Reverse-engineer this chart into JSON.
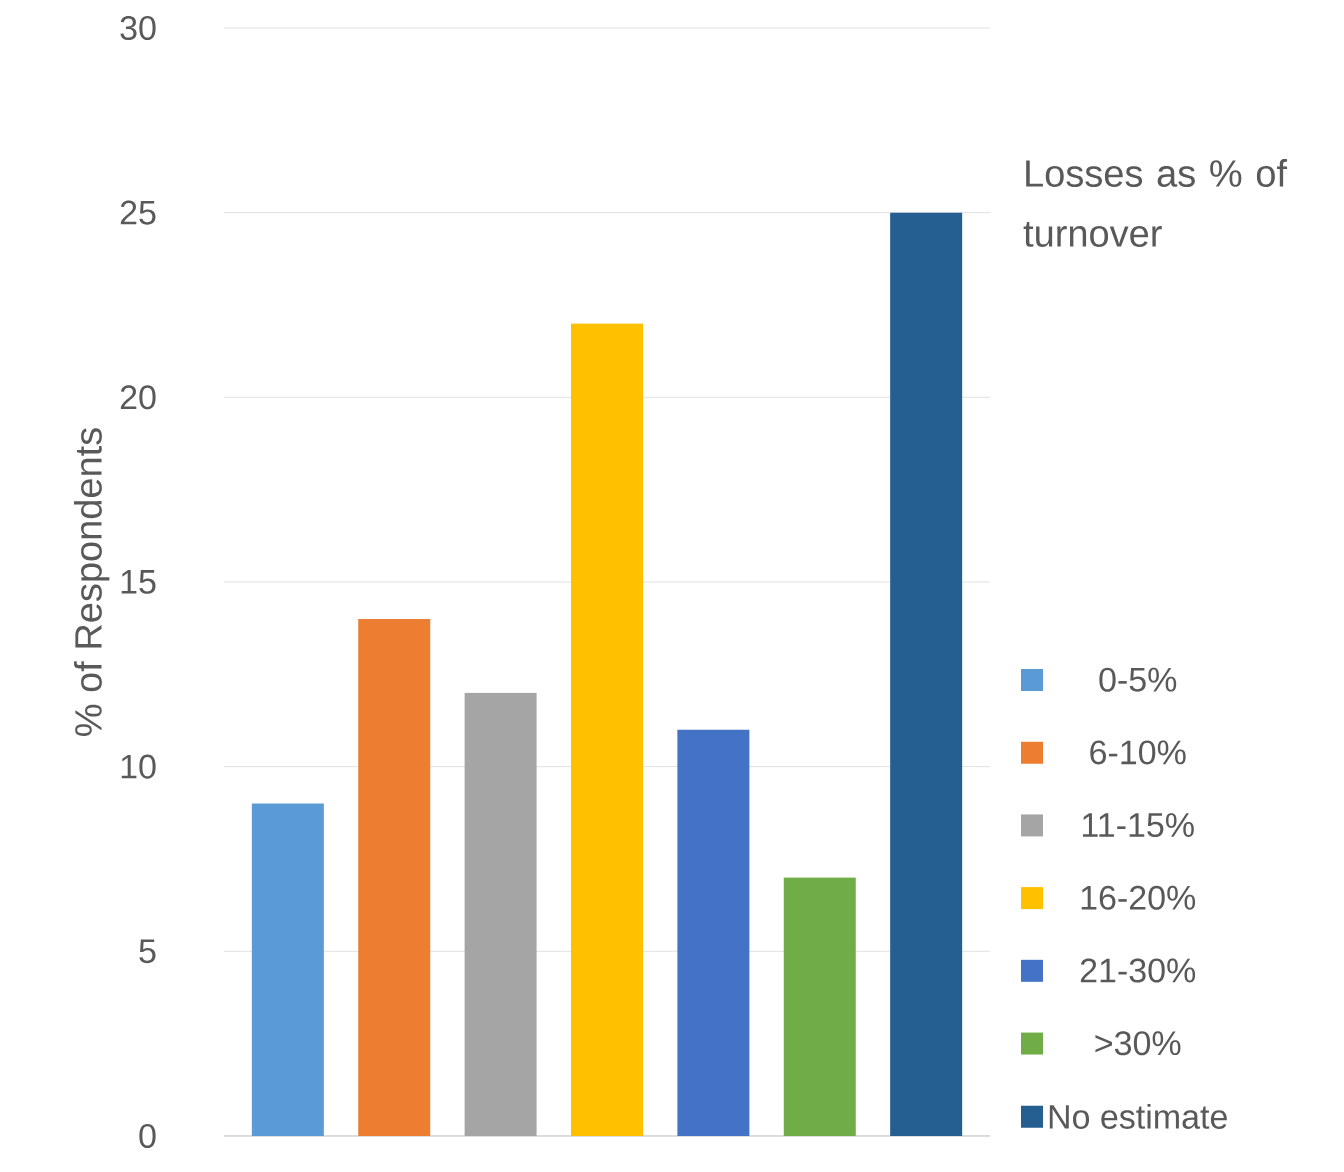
{
  "chart_data": {
    "type": "bar",
    "ylabel": "% of Respondents",
    "legend_title": "Losses as % of turnover",
    "categories": [
      null,
      null,
      null,
      null,
      null,
      null,
      null
    ],
    "series": [
      {
        "name": "0-5%",
        "color": "#5b9bd5",
        "values": [
          9,
          null,
          null,
          null,
          null,
          null,
          null
        ]
      },
      {
        "name": "6-10%",
        "color": "#ed7d31",
        "values": [
          null,
          14,
          null,
          null,
          null,
          null,
          null
        ]
      },
      {
        "name": "11-15%",
        "color": "#a5a5a5",
        "values": [
          null,
          null,
          12,
          null,
          null,
          null,
          null
        ]
      },
      {
        "name": "16-20%",
        "color": "#ffc000",
        "values": [
          null,
          null,
          null,
          22,
          null,
          null,
          null
        ]
      },
      {
        "name": "21-30%",
        "color": "#4472c4",
        "values": [
          null,
          null,
          null,
          null,
          11,
          null,
          null
        ]
      },
      {
        "name": ">30%",
        "color": "#70ad47",
        "values": [
          null,
          null,
          null,
          null,
          null,
          7,
          null
        ]
      },
      {
        "name": "No estimate",
        "color": "#255e91",
        "values": [
          null,
          null,
          null,
          null,
          null,
          null,
          25
        ]
      }
    ],
    "ylim": [
      0,
      30
    ],
    "yticks": [
      0,
      5,
      10,
      15,
      20,
      25,
      30
    ],
    "grid": "y",
    "legend": "right"
  }
}
